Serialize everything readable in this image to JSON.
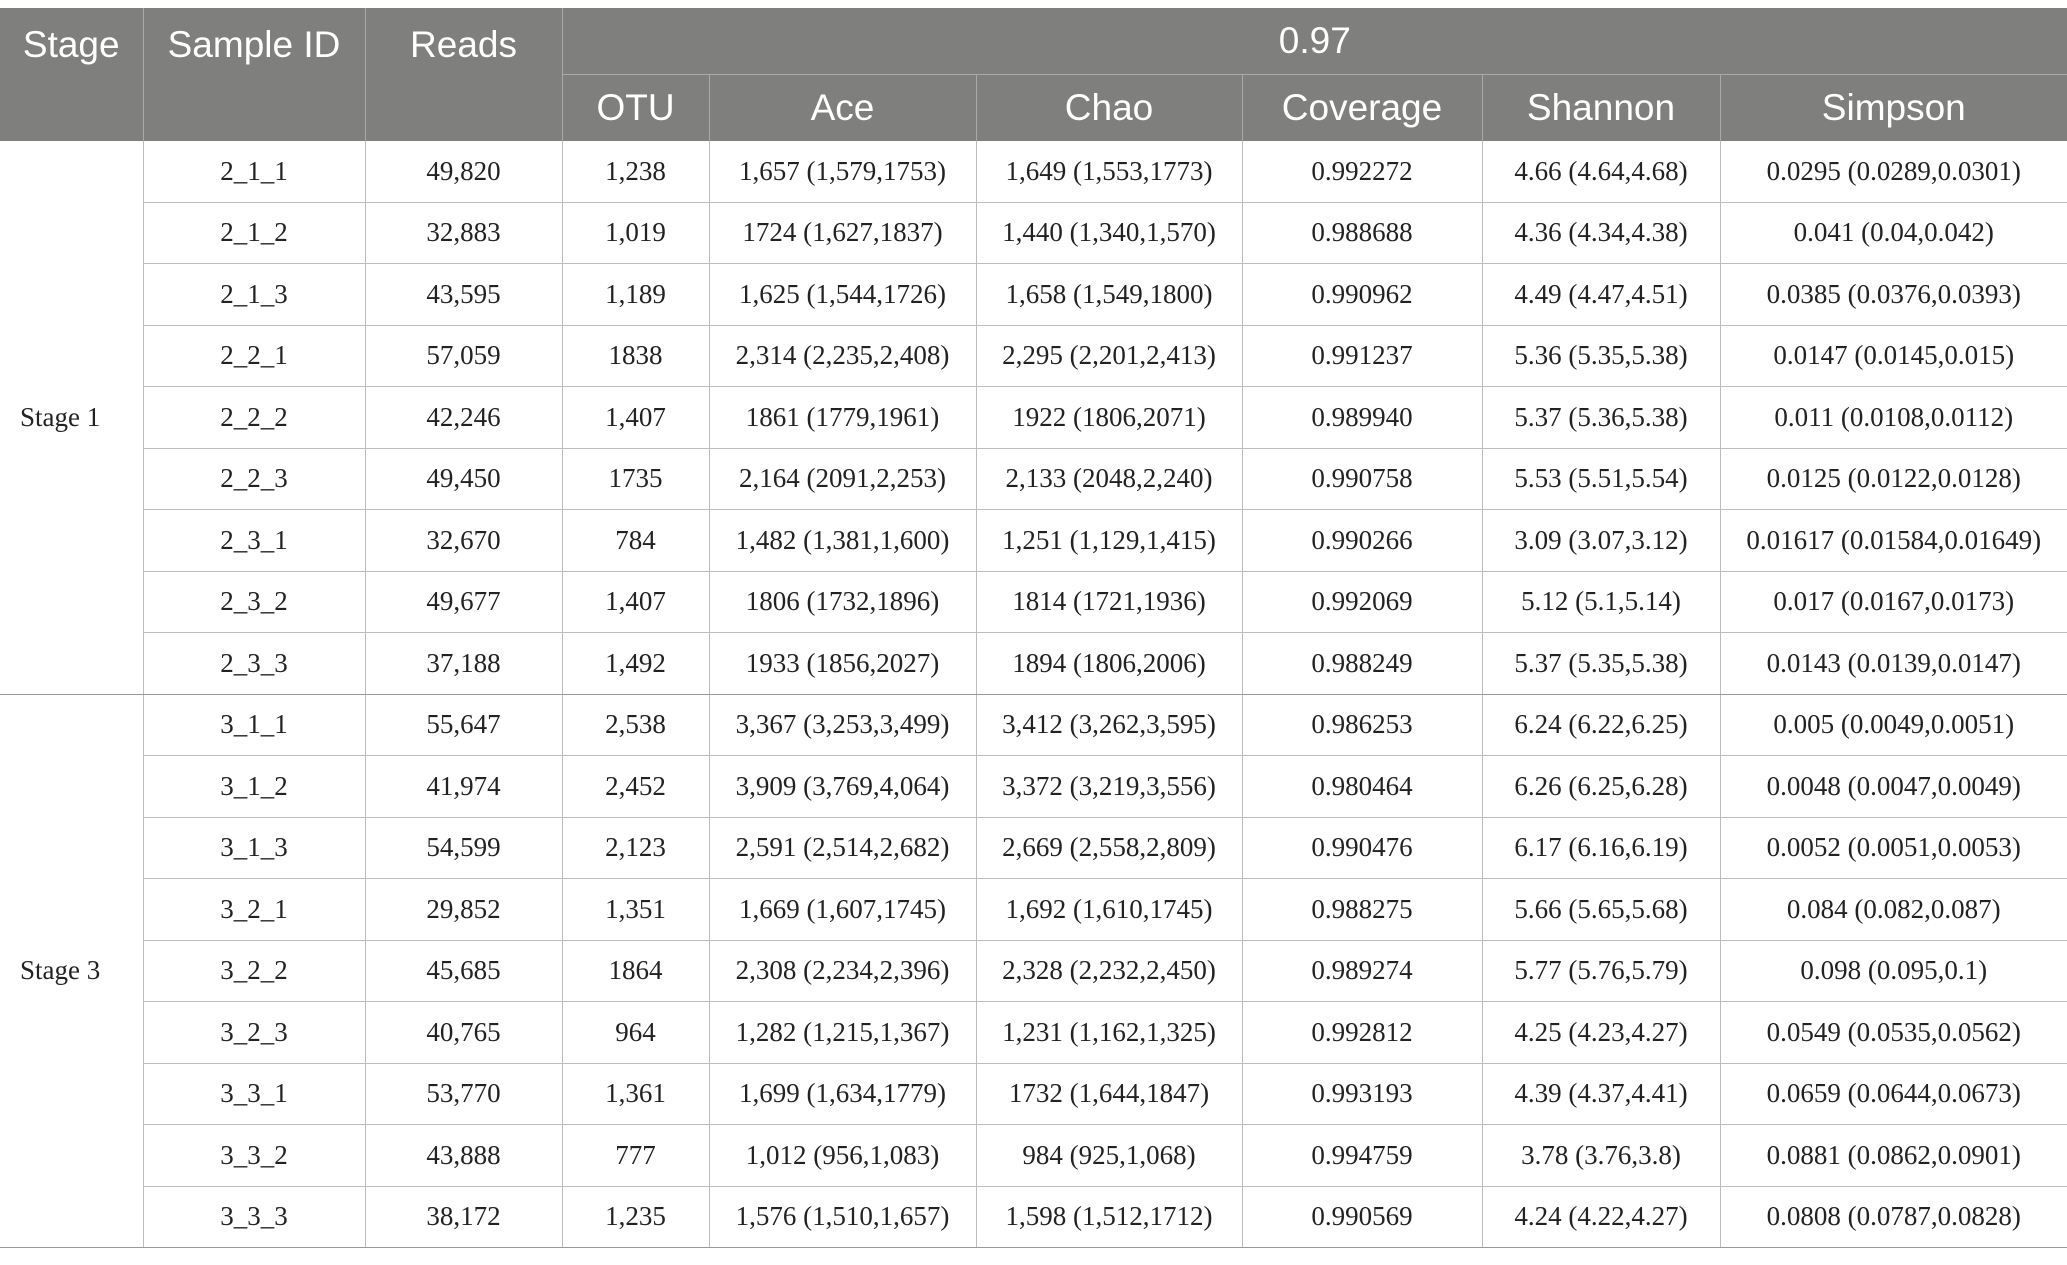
{
  "table": {
    "headers": {
      "stage": "Stage",
      "sample_id": "Sample ID",
      "reads": "Reads",
      "group": "0.97",
      "otu": "OTU",
      "ace": "Ace",
      "chao": "Chao",
      "coverage": "Coverage",
      "shannon": "Shannon",
      "simpson": "Simpson"
    },
    "groups": [
      {
        "stage": "Stage 1",
        "rows": [
          {
            "sample": "2_1_1",
            "reads": "49,820",
            "otu": "1,238",
            "ace": "1,657 (1,579,1753)",
            "chao": "1,649 (1,553,1773)",
            "coverage": "0.992272",
            "shannon": "4.66 (4.64,4.68)",
            "simpson": "0.0295 (0.0289,0.0301)"
          },
          {
            "sample": "2_1_2",
            "reads": "32,883",
            "otu": "1,019",
            "ace": "1724 (1,627,1837)",
            "chao": "1,440 (1,340,1,570)",
            "coverage": "0.988688",
            "shannon": "4.36 (4.34,4.38)",
            "simpson": "0.041 (0.04,0.042)"
          },
          {
            "sample": "2_1_3",
            "reads": "43,595",
            "otu": "1,189",
            "ace": "1,625 (1,544,1726)",
            "chao": "1,658 (1,549,1800)",
            "coverage": "0.990962",
            "shannon": "4.49 (4.47,4.51)",
            "simpson": "0.0385 (0.0376,0.0393)"
          },
          {
            "sample": "2_2_1",
            "reads": "57,059",
            "otu": "1838",
            "ace": "2,314 (2,235,2,408)",
            "chao": "2,295 (2,201,2,413)",
            "coverage": "0.991237",
            "shannon": "5.36 (5.35,5.38)",
            "simpson": "0.0147 (0.0145,0.015)"
          },
          {
            "sample": "2_2_2",
            "reads": "42,246",
            "otu": "1,407",
            "ace": "1861 (1779,1961)",
            "chao": "1922 (1806,2071)",
            "coverage": "0.989940",
            "shannon": "5.37 (5.36,5.38)",
            "simpson": "0.011 (0.0108,0.0112)"
          },
          {
            "sample": "2_2_3",
            "reads": "49,450",
            "otu": "1735",
            "ace": "2,164 (2091,2,253)",
            "chao": "2,133 (2048,2,240)",
            "coverage": "0.990758",
            "shannon": "5.53 (5.51,5.54)",
            "simpson": "0.0125 (0.0122,0.0128)"
          },
          {
            "sample": "2_3_1",
            "reads": "32,670",
            "otu": "784",
            "ace": "1,482 (1,381,1,600)",
            "chao": "1,251 (1,129,1,415)",
            "coverage": "0.990266",
            "shannon": "3.09 (3.07,3.12)",
            "simpson": "0.01617 (0.01584,0.01649)"
          },
          {
            "sample": "2_3_2",
            "reads": "49,677",
            "otu": "1,407",
            "ace": "1806 (1732,1896)",
            "chao": "1814 (1721,1936)",
            "coverage": "0.992069",
            "shannon": "5.12 (5.1,5.14)",
            "simpson": "0.017 (0.0167,0.0173)"
          },
          {
            "sample": "2_3_3",
            "reads": "37,188",
            "otu": "1,492",
            "ace": "1933 (1856,2027)",
            "chao": "1894 (1806,2006)",
            "coverage": "0.988249",
            "shannon": "5.37 (5.35,5.38)",
            "simpson": "0.0143 (0.0139,0.0147)"
          }
        ]
      },
      {
        "stage": "Stage 3",
        "rows": [
          {
            "sample": "3_1_1",
            "reads": "55,647",
            "otu": "2,538",
            "ace": "3,367 (3,253,3,499)",
            "chao": "3,412 (3,262,3,595)",
            "coverage": "0.986253",
            "shannon": "6.24 (6.22,6.25)",
            "simpson": "0.005 (0.0049,0.0051)"
          },
          {
            "sample": "3_1_2",
            "reads": "41,974",
            "otu": "2,452",
            "ace": "3,909 (3,769,4,064)",
            "chao": "3,372 (3,219,3,556)",
            "coverage": "0.980464",
            "shannon": "6.26 (6.25,6.28)",
            "simpson": "0.0048 (0.0047,0.0049)"
          },
          {
            "sample": "3_1_3",
            "reads": "54,599",
            "otu": "2,123",
            "ace": "2,591 (2,514,2,682)",
            "chao": "2,669 (2,558,2,809)",
            "coverage": "0.990476",
            "shannon": "6.17 (6.16,6.19)",
            "simpson": "0.0052 (0.0051,0.0053)"
          },
          {
            "sample": "3_2_1",
            "reads": "29,852",
            "otu": "1,351",
            "ace": "1,669 (1,607,1745)",
            "chao": "1,692 (1,610,1745)",
            "coverage": "0.988275",
            "shannon": "5.66 (5.65,5.68)",
            "simpson": "0.084 (0.082,0.087)"
          },
          {
            "sample": "3_2_2",
            "reads": "45,685",
            "otu": "1864",
            "ace": "2,308 (2,234,2,396)",
            "chao": "2,328 (2,232,2,450)",
            "coverage": "0.989274",
            "shannon": "5.77 (5.76,5.79)",
            "simpson": "0.098 (0.095,0.1)"
          },
          {
            "sample": "3_2_3",
            "reads": "40,765",
            "otu": "964",
            "ace": "1,282 (1,215,1,367)",
            "chao": "1,231 (1,162,1,325)",
            "coverage": "0.992812",
            "shannon": "4.25 (4.23,4.27)",
            "simpson": "0.0549 (0.0535,0.0562)"
          },
          {
            "sample": "3_3_1",
            "reads": "53,770",
            "otu": "1,361",
            "ace": "1,699 (1,634,1779)",
            "chao": "1732 (1,644,1847)",
            "coverage": "0.993193",
            "shannon": "4.39 (4.37,4.41)",
            "simpson": "0.0659 (0.0644,0.0673)"
          },
          {
            "sample": "3_3_2",
            "reads": "43,888",
            "otu": "777",
            "ace": "1,012 (956,1,083)",
            "chao": "984 (925,1,068)",
            "coverage": "0.994759",
            "shannon": "3.78 (3.76,3.8)",
            "simpson": "0.0881 (0.0862,0.0901)"
          },
          {
            "sample": "3_3_3",
            "reads": "38,172",
            "otu": "1,235",
            "ace": "1,576 (1,510,1,657)",
            "chao": "1,598 (1,512,1712)",
            "coverage": "0.990569",
            "shannon": "4.24 (4.22,4.27)",
            "simpson": "0.0808 (0.0787,0.0828)"
          }
        ]
      }
    ]
  }
}
